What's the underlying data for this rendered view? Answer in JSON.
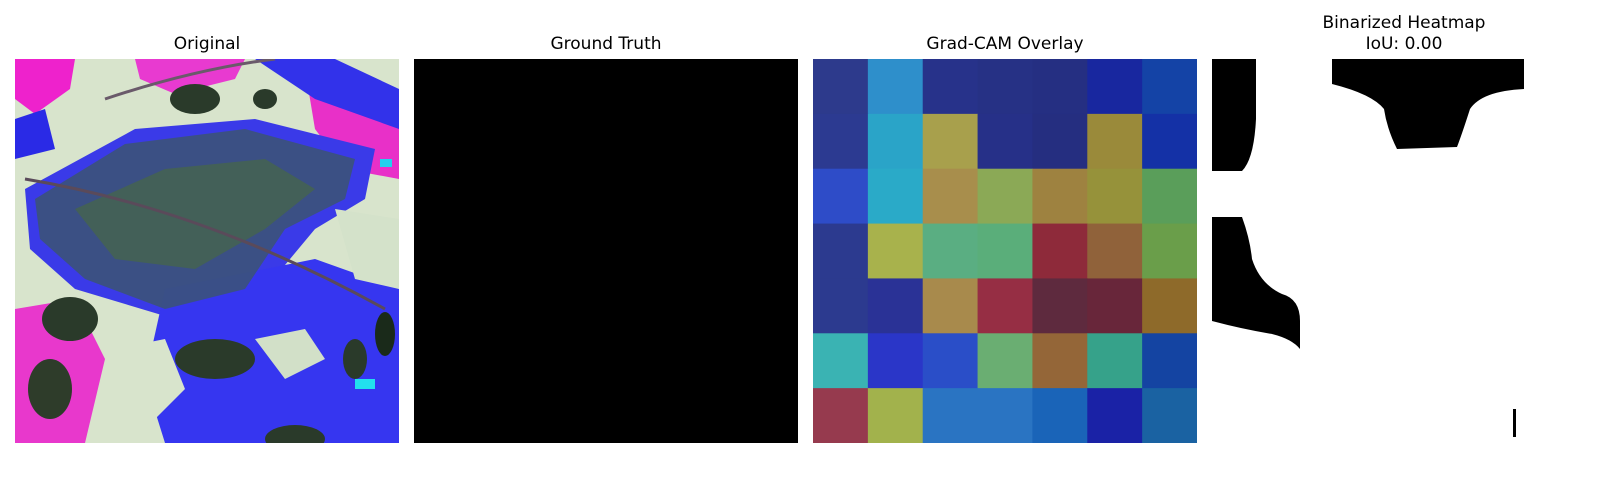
{
  "panels": {
    "original": {
      "title": "Original"
    },
    "ground_truth": {
      "title": "Ground Truth"
    },
    "gradcam": {
      "title": "Grad-CAM Overlay"
    },
    "binarized": {
      "title": "Binarized Heatmap",
      "subtitle": "IoU: 0.00"
    }
  },
  "gradcam_grid": {
    "rows": 7,
    "cols": 7,
    "colors": [
      [
        "#2d3a8c",
        "#2e8fcb",
        "#27328a",
        "#263185",
        "#252f82",
        "#18279f",
        "#1443a6"
      ],
      [
        "#2c3a91",
        "#2aa4c8",
        "#a8a04c",
        "#263088",
        "#252e80",
        "#9a8a3a",
        "#1431a6"
      ],
      [
        "#2e4cc8",
        "#2aaac8",
        "#a88e4c",
        "#8ba956",
        "#9e8240",
        "#96923a",
        "#5a9e5a"
      ],
      [
        "#2c3a8f",
        "#a8b24c",
        "#5aae82",
        "#5aae7a",
        "#8e2a3a",
        "#90623a",
        "#6a9e4a"
      ],
      [
        "#2c3a8f",
        "#2a3296",
        "#a88a4c",
        "#962e44",
        "#5e2a3e",
        "#68263a",
        "#8e6a2a"
      ],
      [
        "#3ab3b3",
        "#2a36c8",
        "#2a4ec8",
        "#6aae72",
        "#946638",
        "#36a28a",
        "#1444a2"
      ],
      [
        "#963a4e",
        "#a2b24c",
        "#2a74c2",
        "#2a74c2",
        "#1a64b8",
        "#1a22a6",
        "#1a62a2"
      ]
    ]
  }
}
